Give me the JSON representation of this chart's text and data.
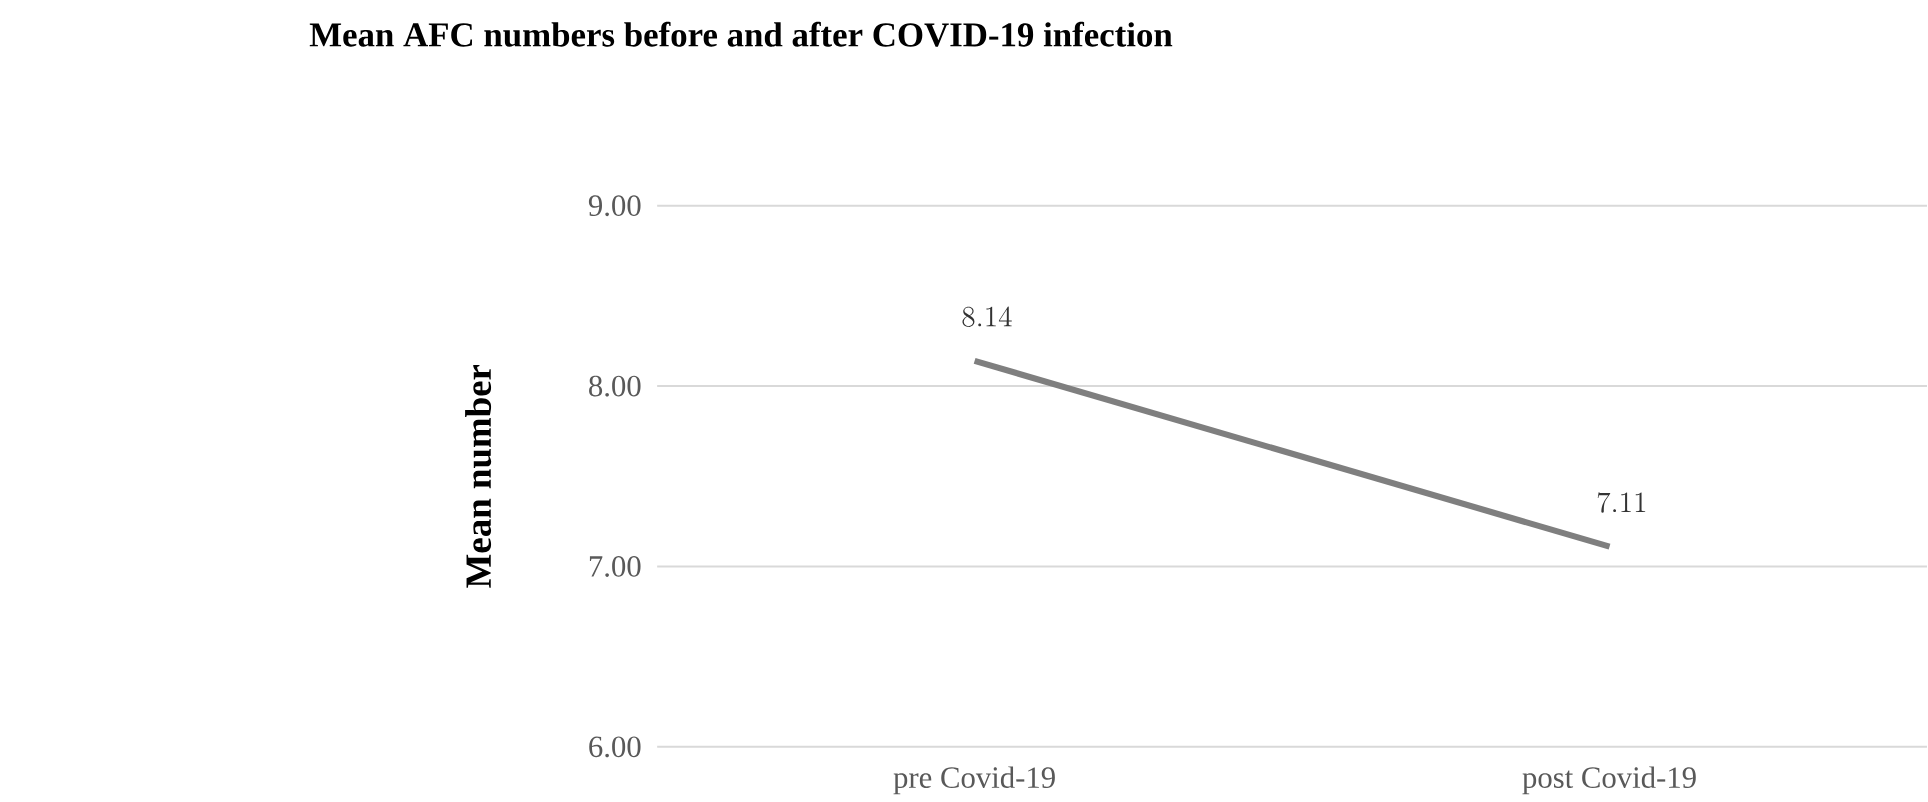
{
  "chart_data": {
    "type": "line",
    "title": "Mean AFC numbers before and after COVID-19 infection",
    "ylabel": "Mean number",
    "categories": [
      "pre Covid-19",
      "post Covid-19"
    ],
    "series": [
      {
        "color": "#7f7f7f",
        "values": [
          8.14,
          7.11
        ]
      }
    ],
    "ylim": [
      6,
      9
    ],
    "yticks": [
      {
        "value": 6,
        "label": "6.00"
      },
      {
        "value": 7,
        "label": "7.00"
      },
      {
        "value": 8,
        "label": "8.00"
      },
      {
        "value": 9,
        "label": "9.00"
      }
    ],
    "grid": "y",
    "data_labels": true,
    "line_style": "solid",
    "marker": "none"
  }
}
